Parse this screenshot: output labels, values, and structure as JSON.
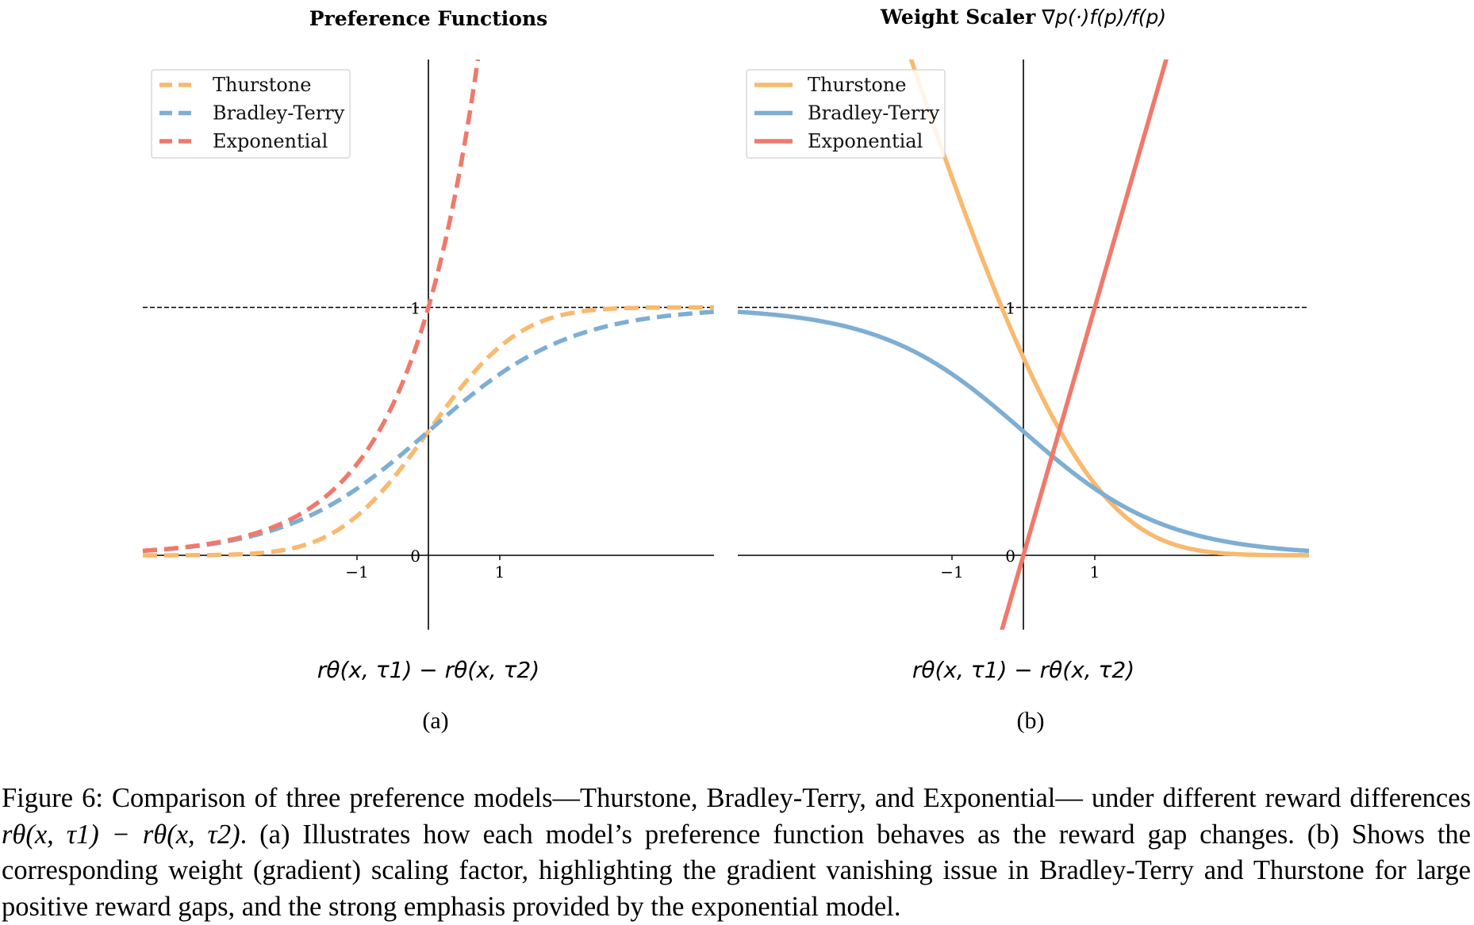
{
  "chart_data": [
    {
      "type": "line",
      "title": "Preference Functions",
      "xlabel": "rθ(x, τ1) − rθ(x, τ2)",
      "subfigure_label": "(a)",
      "xlim": [
        -4,
        4
      ],
      "ylim": [
        -0.3,
        2
      ],
      "x_ticks": [
        "−1",
        "1"
      ],
      "y_ticks": [
        "0",
        "1"
      ],
      "reference_line": {
        "y": 1,
        "style": "dashed",
        "color": "#000000"
      },
      "grid": false,
      "legend_position": "top-left",
      "line_style": "dashed",
      "series": [
        {
          "name": "Thurstone",
          "function": "Φ(x)",
          "color": "#f9b96e",
          "x": [
            -4,
            -3,
            -2,
            -1,
            0,
            1,
            2,
            3,
            4
          ],
          "y": [
            0.0,
            0.001,
            0.023,
            0.159,
            0.5,
            0.841,
            0.977,
            0.999,
            1.0
          ]
        },
        {
          "name": "Bradley-Terry",
          "function": "σ(x)",
          "color": "#7eaed3",
          "x": [
            -4,
            -3,
            -2,
            -1,
            0,
            1,
            2,
            3,
            4
          ],
          "y": [
            0.018,
            0.047,
            0.119,
            0.269,
            0.5,
            0.731,
            0.881,
            0.953,
            0.982
          ]
        },
        {
          "name": "Exponential",
          "function": "exp(x)",
          "color": "#f0796b",
          "x": [
            -4,
            -3,
            -2,
            -1,
            0,
            0.5,
            0.69
          ],
          "y": [
            0.018,
            0.05,
            0.135,
            0.368,
            1.0,
            1.649,
            2.0
          ]
        }
      ]
    },
    {
      "type": "line",
      "title_bold": "Weight Scaler",
      "title_math": "∇p(·)f(p)/f(p)",
      "xlabel": "rθ(x, τ1) − rθ(x, τ2)",
      "subfigure_label": "(b)",
      "xlim": [
        -4,
        4
      ],
      "ylim": [
        -0.3,
        2
      ],
      "x_ticks": [
        "−1",
        "1"
      ],
      "y_ticks": [
        "0",
        "1"
      ],
      "reference_line": {
        "y": 1,
        "style": "dashed",
        "color": "#000000"
      },
      "grid": false,
      "legend_position": "top-left",
      "line_style": "solid",
      "series": [
        {
          "name": "Thurstone",
          "function": "φ(x)/Φ(x)",
          "color": "#f9b96e",
          "x": [
            -1.58,
            -1,
            0,
            1,
            2,
            3,
            4
          ],
          "y": [
            2.0,
            1.525,
            0.798,
            0.288,
            0.055,
            0.004,
            0.0
          ]
        },
        {
          "name": "Bradley-Terry",
          "function": "1−σ(x)",
          "color": "#7eaed3",
          "x": [
            -4,
            -3,
            -2,
            -1,
            0,
            1,
            2,
            3,
            4
          ],
          "y": [
            0.982,
            0.953,
            0.881,
            0.731,
            0.5,
            0.269,
            0.119,
            0.047,
            0.018
          ]
        },
        {
          "name": "Exponential",
          "function": "x",
          "color": "#f0796b",
          "x": [
            -0.3,
            0,
            1,
            2
          ],
          "y": [
            -0.3,
            0,
            1,
            2
          ]
        }
      ]
    }
  ],
  "caption": {
    "label": "Figure 6:",
    "part1": "Comparison of three preference models—Thurstone, Bradley-Terry, and Exponential— under different reward differences",
    "math": "rθ(x, τ1) − rθ(x, τ2)",
    "part2": ". (a) Illustrates how each model’s preference function behaves as the reward gap changes. (b) Shows the corresponding weight (gradient) scaling factor, highlighting the gradient vanishing issue in Bradley-Terry and Thurstone for large positive reward gaps, and the strong emphasis provided by the exponential model."
  }
}
